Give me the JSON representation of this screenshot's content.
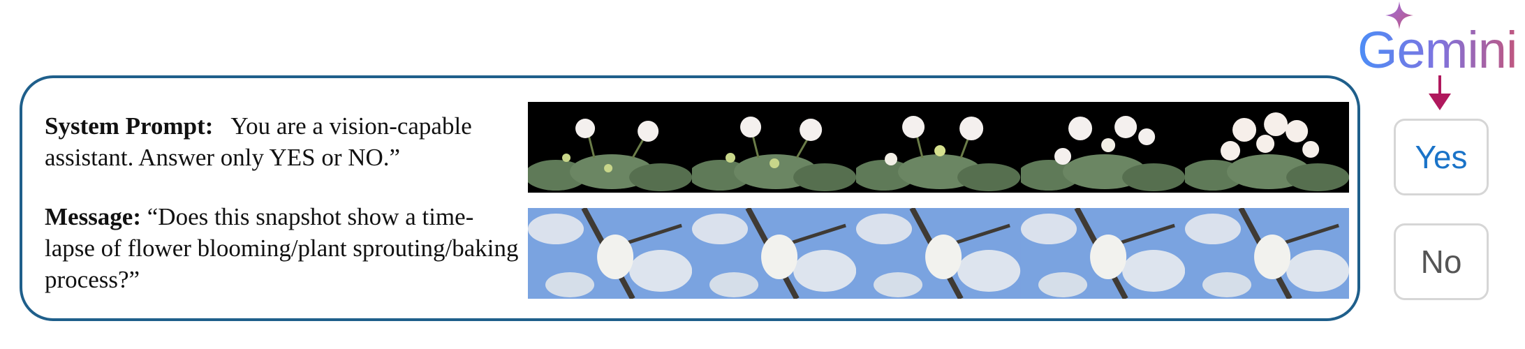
{
  "prompt": {
    "system_label": "System Prompt:",
    "system_text": "You are a vision-capable assistant. Answer only YES or NO.”",
    "message_label": "Message:",
    "message_text": "“Does this snapshot show a time-lapse of flower blooming/plant sprouting/baking process?”"
  },
  "image_strips": [
    {
      "name": "african-violet-blooming",
      "frames": 5,
      "background": "#000000",
      "flower_color": "#f4f0ee",
      "leaf_color": "#5f7a58"
    },
    {
      "name": "white-blossom-branch",
      "frames": 5,
      "background": "#7aa3e0",
      "flower_color": "#f2f2ee",
      "leaf_color": "#3f3a34"
    }
  ],
  "model": {
    "logo": "Gemini",
    "logo_colors": [
      "#4c8df6",
      "#7d74e0",
      "#c0577f"
    ],
    "arrow_color": "#b0185d"
  },
  "answers": {
    "yes_label": "Yes",
    "no_label": "No"
  }
}
